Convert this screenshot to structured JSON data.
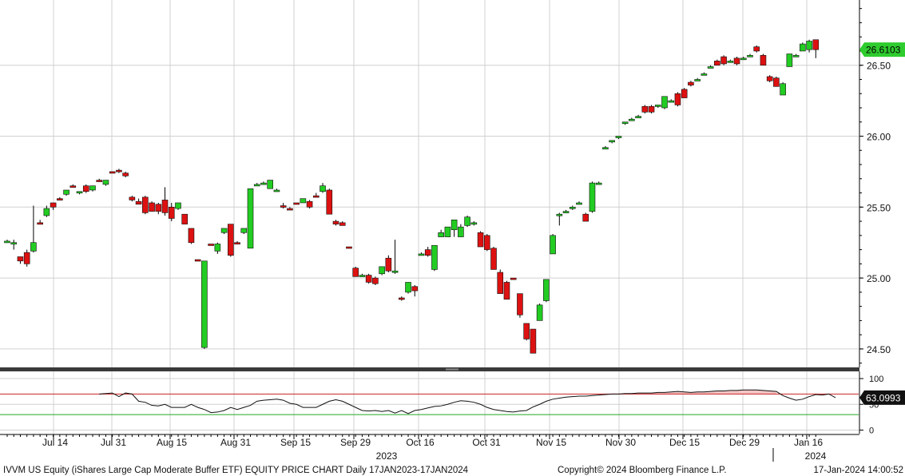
{
  "chart_data": {
    "type": "candlestick",
    "price_axis": {
      "ylim": [
        24.37,
        26.96
      ],
      "ticks": [
        "24.50",
        "25.00",
        "25.50",
        "26.00",
        "26.50"
      ]
    },
    "last_price": "26.6103",
    "x_ticks": [
      "Jul 14",
      "Jul 31",
      "Aug 15",
      "Aug 31",
      "Sep 15",
      "Sep 29",
      "Oct 16",
      "Oct 31",
      "Nov 15",
      "Nov 30",
      "Dec 15",
      "Dec 29",
      "Jan 16"
    ],
    "x_years": [
      "2023",
      "2024"
    ],
    "candles": [
      {
        "o": 25.26,
        "h": 25.27,
        "l": 25.25,
        "c": 25.26
      },
      {
        "o": 25.25,
        "h": 25.27,
        "l": 25.2,
        "c": 25.25
      },
      {
        "o": 25.15,
        "h": 25.15,
        "l": 25.1,
        "c": 25.12
      },
      {
        "o": 25.18,
        "h": 25.2,
        "l": 25.08,
        "c": 25.1
      },
      {
        "o": 25.19,
        "h": 25.51,
        "l": 25.18,
        "c": 25.25
      },
      {
        "o": 25.39,
        "h": 25.41,
        "l": 25.38,
        "c": 25.38
      },
      {
        "o": 25.44,
        "h": 25.51,
        "l": 25.43,
        "c": 25.49
      },
      {
        "o": 25.53,
        "h": 25.53,
        "l": 25.48,
        "c": 25.5
      },
      {
        "o": 25.56,
        "h": 25.57,
        "l": 25.55,
        "c": 25.55
      },
      {
        "o": 25.59,
        "h": 25.62,
        "l": 25.58,
        "c": 25.62
      },
      {
        "o": 25.65,
        "h": 25.66,
        "l": 25.64,
        "c": 25.64
      },
      {
        "o": 25.6,
        "h": 25.61,
        "l": 25.59,
        "c": 25.61
      },
      {
        "o": 25.65,
        "h": 25.66,
        "l": 25.6,
        "c": 25.61
      },
      {
        "o": 25.62,
        "h": 25.65,
        "l": 25.61,
        "c": 25.65
      },
      {
        "o": 25.69,
        "h": 25.7,
        "l": 25.68,
        "c": 25.68
      },
      {
        "o": 25.66,
        "h": 25.69,
        "l": 25.65,
        "c": 25.69
      },
      {
        "o": 25.75,
        "h": 25.75,
        "l": 25.74,
        "c": 25.74
      },
      {
        "o": 25.76,
        "h": 25.77,
        "l": 25.74,
        "c": 25.75
      },
      {
        "o": 25.74,
        "h": 25.75,
        "l": 25.71,
        "c": 25.72
      },
      {
        "o": 25.57,
        "h": 25.58,
        "l": 25.54,
        "c": 25.55
      },
      {
        "o": 25.54,
        "h": 25.56,
        "l": 25.52,
        "c": 25.52
      },
      {
        "o": 25.57,
        "h": 25.58,
        "l": 25.45,
        "c": 25.46
      },
      {
        "o": 25.53,
        "h": 25.54,
        "l": 25.47,
        "c": 25.47
      },
      {
        "o": 25.52,
        "h": 25.53,
        "l": 25.45,
        "c": 25.47
      },
      {
        "o": 25.55,
        "h": 25.64,
        "l": 25.44,
        "c": 25.46
      },
      {
        "o": 25.5,
        "h": 25.53,
        "l": 25.4,
        "c": 25.42
      },
      {
        "o": 25.49,
        "h": 25.53,
        "l": 25.48,
        "c": 25.53
      },
      {
        "o": 25.45,
        "h": 25.45,
        "l": 25.38,
        "c": 25.38
      },
      {
        "o": 25.35,
        "h": 25.35,
        "l": 25.24,
        "c": 25.25
      },
      {
        "o": 25.13,
        "h": 25.13,
        "l": 25.12,
        "c": 25.12
      },
      {
        "o": 24.51,
        "h": 25.12,
        "l": 24.5,
        "c": 25.12
      },
      {
        "o": 25.24,
        "h": 25.24,
        "l": 25.23,
        "c": 25.23
      },
      {
        "o": 25.19,
        "h": 25.25,
        "l": 25.17,
        "c": 25.24
      },
      {
        "o": 25.32,
        "h": 25.35,
        "l": 25.31,
        "c": 25.35
      },
      {
        "o": 25.38,
        "h": 25.38,
        "l": 25.15,
        "c": 25.16
      },
      {
        "o": 25.25,
        "h": 25.26,
        "l": 25.24,
        "c": 25.24
      },
      {
        "o": 25.32,
        "h": 25.35,
        "l": 25.31,
        "c": 25.35
      },
      {
        "o": 25.21,
        "h": 25.63,
        "l": 25.21,
        "c": 25.63
      },
      {
        "o": 25.66,
        "h": 25.67,
        "l": 25.65,
        "c": 25.66
      },
      {
        "o": 25.67,
        "h": 25.68,
        "l": 25.66,
        "c": 25.67
      },
      {
        "o": 25.63,
        "h": 25.69,
        "l": 25.63,
        "c": 25.69
      },
      {
        "o": 25.62,
        "h": 25.63,
        "l": 25.61,
        "c": 25.62
      },
      {
        "o": 25.51,
        "h": 25.53,
        "l": 25.49,
        "c": 25.5
      },
      {
        "o": 25.49,
        "h": 25.5,
        "l": 25.48,
        "c": 25.48
      },
      {
        "o": 25.53,
        "h": 25.53,
        "l": 25.52,
        "c": 25.52
      },
      {
        "o": 25.53,
        "h": 25.56,
        "l": 25.53,
        "c": 25.56
      },
      {
        "o": 25.54,
        "h": 25.55,
        "l": 25.49,
        "c": 25.5
      },
      {
        "o": 25.58,
        "h": 25.6,
        "l": 25.57,
        "c": 25.57
      },
      {
        "o": 25.61,
        "h": 25.67,
        "l": 25.6,
        "c": 25.65
      },
      {
        "o": 25.62,
        "h": 25.63,
        "l": 25.45,
        "c": 25.45
      },
      {
        "o": 25.4,
        "h": 25.41,
        "l": 25.37,
        "c": 25.38
      },
      {
        "o": 25.39,
        "h": 25.4,
        "l": 25.37,
        "c": 25.37
      },
      {
        "o": 25.22,
        "h": 25.22,
        "l": 25.21,
        "c": 25.21
      },
      {
        "o": 25.07,
        "h": 25.08,
        "l": 25.01,
        "c": 25.01
      },
      {
        "o": 25.02,
        "h": 25.03,
        "l": 25.01,
        "c": 25.02
      },
      {
        "o": 25.02,
        "h": 25.03,
        "l": 24.96,
        "c": 24.97
      },
      {
        "o": 25.0,
        "h": 25.01,
        "l": 24.95,
        "c": 24.96
      },
      {
        "o": 25.03,
        "h": 25.08,
        "l": 25.02,
        "c": 25.08
      },
      {
        "o": 25.14,
        "h": 25.16,
        "l": 25.04,
        "c": 25.05
      },
      {
        "o": 25.05,
        "h": 25.27,
        "l": 25.03,
        "c": 25.05
      },
      {
        "o": 24.86,
        "h": 24.87,
        "l": 24.84,
        "c": 24.85
      },
      {
        "o": 24.9,
        "h": 24.97,
        "l": 24.89,
        "c": 24.97
      },
      {
        "o": 24.94,
        "h": 24.95,
        "l": 24.87,
        "c": 24.91
      },
      {
        "o": 25.17,
        "h": 25.18,
        "l": 25.16,
        "c": 25.17
      },
      {
        "o": 25.2,
        "h": 25.22,
        "l": 25.15,
        "c": 25.16
      },
      {
        "o": 25.06,
        "h": 25.23,
        "l": 25.05,
        "c": 25.23
      },
      {
        "o": 25.29,
        "h": 25.34,
        "l": 25.29,
        "c": 25.32
      },
      {
        "o": 25.29,
        "h": 25.36,
        "l": 25.29,
        "c": 25.36
      },
      {
        "o": 25.34,
        "h": 25.41,
        "l": 25.29,
        "c": 25.41
      },
      {
        "o": 25.29,
        "h": 25.38,
        "l": 25.29,
        "c": 25.36
      },
      {
        "o": 25.37,
        "h": 25.44,
        "l": 25.36,
        "c": 25.43
      },
      {
        "o": 25.38,
        "h": 25.4,
        "l": 25.37,
        "c": 25.39
      },
      {
        "o": 25.32,
        "h": 25.33,
        "l": 25.22,
        "c": 25.22
      },
      {
        "o": 25.3,
        "h": 25.31,
        "l": 25.19,
        "c": 25.2
      },
      {
        "o": 25.21,
        "h": 25.22,
        "l": 25.06,
        "c": 25.06
      },
      {
        "o": 25.04,
        "h": 25.06,
        "l": 24.89,
        "c": 24.89
      },
      {
        "o": 24.97,
        "h": 24.98,
        "l": 24.85,
        "c": 24.85
      },
      {
        "o": 25.0,
        "h": 25.0,
        "l": 24.99,
        "c": 24.99
      },
      {
        "o": 24.89,
        "h": 24.89,
        "l": 24.72,
        "c": 24.74
      },
      {
        "o": 24.68,
        "h": 24.68,
        "l": 24.56,
        "c": 24.57
      },
      {
        "o": 24.64,
        "h": 24.64,
        "l": 24.47,
        "c": 24.47
      },
      {
        "o": 24.7,
        "h": 24.82,
        "l": 24.7,
        "c": 24.81
      },
      {
        "o": 24.84,
        "h": 24.99,
        "l": 24.83,
        "c": 24.99
      },
      {
        "o": 25.17,
        "h": 25.31,
        "l": 25.17,
        "c": 25.3
      },
      {
        "o": 25.45,
        "h": 25.46,
        "l": 25.37,
        "c": 25.45
      },
      {
        "o": 25.47,
        "h": 25.48,
        "l": 25.46,
        "c": 25.47
      },
      {
        "o": 25.49,
        "h": 25.51,
        "l": 25.48,
        "c": 25.5
      },
      {
        "o": 25.53,
        "h": 25.54,
        "l": 25.52,
        "c": 25.53
      },
      {
        "o": 25.45,
        "h": 25.46,
        "l": 25.4,
        "c": 25.4
      },
      {
        "o": 25.47,
        "h": 25.68,
        "l": 25.46,
        "c": 25.67
      },
      {
        "o": 25.67,
        "h": 25.68,
        "l": 25.66,
        "c": 25.67
      },
      {
        "o": 25.92,
        "h": 25.93,
        "l": 25.91,
        "c": 25.92
      },
      {
        "o": 25.96,
        "h": 25.97,
        "l": 25.95,
        "c": 25.97
      },
      {
        "o": 25.99,
        "h": 26.0,
        "l": 25.98,
        "c": 26.0
      },
      {
        "o": 26.09,
        "h": 26.1,
        "l": 26.08,
        "c": 26.1
      },
      {
        "o": 26.12,
        "h": 26.13,
        "l": 26.11,
        "c": 26.12
      },
      {
        "o": 26.14,
        "h": 26.15,
        "l": 26.13,
        "c": 26.14
      },
      {
        "o": 26.21,
        "h": 26.22,
        "l": 26.16,
        "c": 26.17
      },
      {
        "o": 26.21,
        "h": 26.22,
        "l": 26.16,
        "c": 26.17
      },
      {
        "o": 26.21,
        "h": 26.22,
        "l": 26.2,
        "c": 26.22
      },
      {
        "o": 26.2,
        "h": 26.28,
        "l": 26.19,
        "c": 26.28
      },
      {
        "o": 26.25,
        "h": 26.26,
        "l": 26.24,
        "c": 26.25
      },
      {
        "o": 26.3,
        "h": 26.31,
        "l": 26.21,
        "c": 26.22
      },
      {
        "o": 26.33,
        "h": 26.34,
        "l": 26.27,
        "c": 26.27
      },
      {
        "o": 26.38,
        "h": 26.39,
        "l": 26.35,
        "c": 26.36
      },
      {
        "o": 26.4,
        "h": 26.41,
        "l": 26.39,
        "c": 26.4
      },
      {
        "o": 26.44,
        "h": 26.45,
        "l": 26.43,
        "c": 26.44
      },
      {
        "o": 26.49,
        "h": 26.5,
        "l": 26.48,
        "c": 26.49
      },
      {
        "o": 26.53,
        "h": 26.54,
        "l": 26.5,
        "c": 26.5
      },
      {
        "o": 26.56,
        "h": 26.57,
        "l": 26.5,
        "c": 26.51
      },
      {
        "o": 26.53,
        "h": 26.54,
        "l": 26.52,
        "c": 26.53
      },
      {
        "o": 26.55,
        "h": 26.56,
        "l": 26.5,
        "c": 26.51
      },
      {
        "o": 26.55,
        "h": 26.56,
        "l": 26.54,
        "c": 26.55
      },
      {
        "o": 26.57,
        "h": 26.58,
        "l": 26.56,
        "c": 26.57
      },
      {
        "o": 26.63,
        "h": 26.64,
        "l": 26.59,
        "c": 26.6
      },
      {
        "o": 26.57,
        "h": 26.58,
        "l": 26.5,
        "c": 26.5
      },
      {
        "o": 26.42,
        "h": 26.43,
        "l": 26.38,
        "c": 26.39
      },
      {
        "o": 26.41,
        "h": 26.42,
        "l": 26.35,
        "c": 26.35
      },
      {
        "o": 26.29,
        "h": 26.38,
        "l": 26.29,
        "c": 26.37
      },
      {
        "o": 26.49,
        "h": 26.58,
        "l": 26.49,
        "c": 26.58
      },
      {
        "o": 26.57,
        "h": 26.58,
        "l": 26.56,
        "c": 26.57
      },
      {
        "o": 26.6,
        "h": 26.66,
        "l": 26.6,
        "c": 26.65
      },
      {
        "o": 26.61,
        "h": 26.68,
        "l": 26.59,
        "c": 26.67
      },
      {
        "o": 26.68,
        "h": 26.68,
        "l": 26.55,
        "c": 26.61
      }
    ],
    "indicator": {
      "ylim": [
        -7,
        114
      ],
      "ticks": [
        "0",
        "50",
        "100"
      ],
      "upper_line": 70,
      "lower_line": 30,
      "last_value": "63.0993",
      "values": [
        null,
        null,
        null,
        null,
        null,
        null,
        null,
        null,
        null,
        null,
        null,
        null,
        null,
        null,
        70,
        71,
        72,
        65,
        72,
        70,
        56,
        54,
        48,
        47,
        50,
        44,
        44,
        44,
        50,
        44,
        40,
        34,
        35,
        38,
        44,
        40,
        44,
        48,
        56,
        58,
        59,
        60,
        58,
        52,
        50,
        44,
        44,
        44,
        50,
        56,
        59,
        56,
        50,
        44,
        38,
        37,
        38,
        36,
        38,
        33,
        38,
        32,
        38,
        40,
        43,
        46,
        47,
        50,
        54,
        57,
        56,
        54,
        50,
        44,
        40,
        38,
        36,
        35,
        37,
        38,
        45,
        50,
        56,
        60,
        62,
        64,
        65,
        66,
        66,
        67,
        68,
        69,
        70,
        70,
        71,
        71,
        72,
        72,
        72,
        73,
        73,
        74,
        75,
        74,
        73,
        74,
        74,
        75,
        76,
        76,
        77,
        77,
        78,
        78,
        78,
        77,
        76,
        75,
        67,
        62,
        58,
        60,
        65,
        69,
        68,
        70,
        63
      ]
    }
  },
  "footer": {
    "security": "IVVM US Equity (iShares Large Cap Moderate Buffer ETF) EQUITY PRICE CHART  Daily 17JAN2023-17JAN2024",
    "copyright": "Copyright© 2024 Bloomberg Finance L.P.",
    "timestamp": "17-Jan-2024 14:00:52"
  },
  "colors": {
    "up": "#22cc22",
    "down": "#dd1111",
    "grid": "#d0d0d0",
    "separator": "#3a3a3a",
    "upper_line": "#cc2222",
    "lower_line": "#22aa22",
    "fill": "#f4c6c6",
    "badge_green": "#2ecc2e"
  }
}
